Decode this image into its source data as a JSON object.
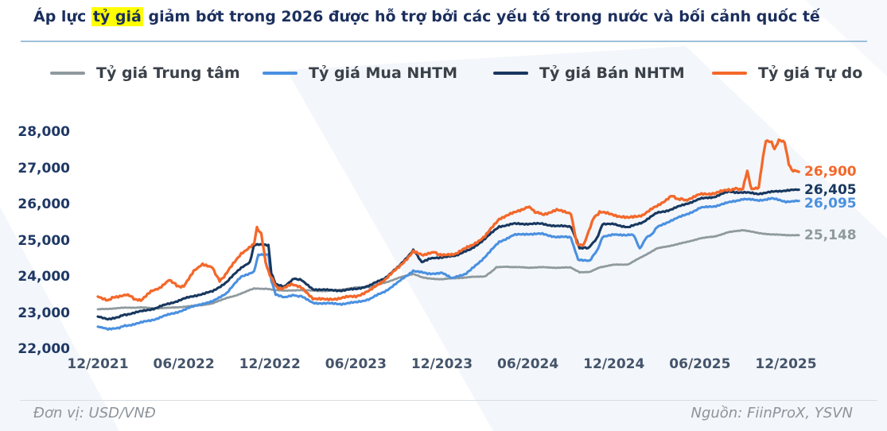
{
  "title": {
    "prefix": "Áp lực ",
    "highlight": "tỷ giá",
    "suffix": " giảm bớt trong 2026 được hỗ trợ bởi các yếu tố trong nước và bối cảnh quốc tế"
  },
  "footer": {
    "unit": "Đơn vị: USD/VNĐ",
    "source": "Nguồn: FiinProX, YSVN"
  },
  "colors": {
    "title": "#1b2f5e",
    "highlight": "#ffff00",
    "underline": "#9dc0da",
    "axis": "#1f3864",
    "xaxis": "#44546a",
    "separator": "#d9dde2",
    "footer_text": "#8d949b"
  },
  "chart_data": {
    "type": "line",
    "unit": "USD/VND",
    "ylim": [
      22000,
      28000
    ],
    "grid": false,
    "legend_position": "top",
    "y_ticks": [
      "28,000",
      "27,000",
      "26,000",
      "25,000",
      "24,000",
      "23,000",
      "22,000"
    ],
    "y_tick_values": [
      28000,
      27000,
      26000,
      25000,
      24000,
      23000,
      22000
    ],
    "x_ticks": [
      "12/2021",
      "06/2022",
      "12/2022",
      "06/2023",
      "12/2023",
      "06/2024",
      "12/2024",
      "06/2025",
      "12/2025"
    ],
    "x_note": "series points are [months since 12/2021, rate VND per USD]",
    "series": [
      {
        "name": "Tỷ giá Trung tâm",
        "color": "#8f9a9e",
        "end_label": "25,148",
        "end_value": 25148,
        "points": [
          [
            0,
            23100
          ],
          [
            1,
            23120
          ],
          [
            2,
            23145
          ],
          [
            3,
            23150
          ],
          [
            4,
            23125
          ],
          [
            5,
            23140
          ],
          [
            6,
            23170
          ],
          [
            7,
            23205
          ],
          [
            8,
            23260
          ],
          [
            9,
            23420
          ],
          [
            9.6,
            23480
          ],
          [
            10.4,
            23600
          ],
          [
            10.9,
            23680
          ],
          [
            11.5,
            23670
          ],
          [
            12,
            23655
          ],
          [
            13,
            23610
          ],
          [
            14,
            23632
          ],
          [
            15,
            23615
          ],
          [
            16,
            23605
          ],
          [
            17,
            23645
          ],
          [
            18,
            23700
          ],
          [
            19,
            23722
          ],
          [
            20,
            23830
          ],
          [
            21,
            23970
          ],
          [
            22,
            24080
          ],
          [
            22.5,
            24000
          ],
          [
            23,
            23952
          ],
          [
            24,
            23932
          ],
          [
            25,
            23962
          ],
          [
            26,
            23990
          ],
          [
            27,
            24012
          ],
          [
            27.4,
            24120
          ],
          [
            27.8,
            24262
          ],
          [
            28.5,
            24272
          ],
          [
            29,
            24268
          ],
          [
            30,
            24252
          ],
          [
            31,
            24262
          ],
          [
            32,
            24250
          ],
          [
            33,
            24255
          ],
          [
            33.6,
            24120
          ],
          [
            34.3,
            24132
          ],
          [
            35,
            24262
          ],
          [
            36,
            24330
          ],
          [
            37,
            24342
          ],
          [
            38,
            24560
          ],
          [
            39,
            24780
          ],
          [
            40,
            24862
          ],
          [
            41,
            24950
          ],
          [
            42,
            25060
          ],
          [
            43,
            25112
          ],
          [
            44,
            25230
          ],
          [
            45,
            25292
          ],
          [
            46,
            25212
          ],
          [
            47,
            25168
          ],
          [
            48,
            25152
          ],
          [
            48.9,
            25148
          ]
        ]
      },
      {
        "name": "Tỷ giá Mua NHTM",
        "color": "#4a90e0",
        "end_label": "26,095",
        "end_value": 26095,
        "points": [
          [
            0,
            22620
          ],
          [
            0.7,
            22550
          ],
          [
            1.5,
            22600
          ],
          [
            2,
            22650
          ],
          [
            3,
            22730
          ],
          [
            4,
            22830
          ],
          [
            5,
            22960
          ],
          [
            6,
            23080
          ],
          [
            7,
            23230
          ],
          [
            8,
            23310
          ],
          [
            9,
            23560
          ],
          [
            10,
            24000
          ],
          [
            10.9,
            24150
          ],
          [
            11.2,
            24600
          ],
          [
            11.9,
            24620
          ],
          [
            12.1,
            23900
          ],
          [
            12.4,
            23500
          ],
          [
            13,
            23420
          ],
          [
            13.7,
            23490
          ],
          [
            14.2,
            23450
          ],
          [
            15,
            23280
          ],
          [
            16,
            23260
          ],
          [
            17,
            23250
          ],
          [
            18,
            23290
          ],
          [
            19,
            23390
          ],
          [
            20,
            23590
          ],
          [
            21,
            23860
          ],
          [
            22,
            24170
          ],
          [
            23,
            24080
          ],
          [
            24,
            24110
          ],
          [
            24.7,
            23950
          ],
          [
            25.5,
            24050
          ],
          [
            26,
            24180
          ],
          [
            27,
            24550
          ],
          [
            28,
            24960
          ],
          [
            29,
            25150
          ],
          [
            30,
            25185
          ],
          [
            31,
            25180
          ],
          [
            32,
            25100
          ],
          [
            33,
            25090
          ],
          [
            33.5,
            24460
          ],
          [
            34.3,
            24450
          ],
          [
            34.8,
            24700
          ],
          [
            35.2,
            25090
          ],
          [
            36,
            25160
          ],
          [
            36.8,
            25160
          ],
          [
            37.4,
            25150
          ],
          [
            37.8,
            24760
          ],
          [
            38.2,
            25060
          ],
          [
            38.6,
            25160
          ],
          [
            39,
            25360
          ],
          [
            40,
            25560
          ],
          [
            41,
            25710
          ],
          [
            42,
            25900
          ],
          [
            43,
            25950
          ],
          [
            44,
            26050
          ],
          [
            45,
            26150
          ],
          [
            46,
            26110
          ],
          [
            47,
            26160
          ],
          [
            48,
            26080
          ],
          [
            48.9,
            26095
          ]
        ]
      },
      {
        "name": "Tỷ giá Bán NHTM",
        "color": "#17375e",
        "end_label": "26,405",
        "end_value": 26405,
        "points": [
          [
            0,
            22900
          ],
          [
            0.7,
            22830
          ],
          [
            1.5,
            22900
          ],
          [
            2,
            22960
          ],
          [
            3,
            23040
          ],
          [
            4,
            23130
          ],
          [
            5,
            23260
          ],
          [
            6,
            23390
          ],
          [
            7,
            23500
          ],
          [
            8,
            23590
          ],
          [
            9,
            23860
          ],
          [
            10,
            24250
          ],
          [
            10.6,
            24400
          ],
          [
            10.9,
            24880
          ],
          [
            11.9,
            24880
          ],
          [
            12.1,
            24100
          ],
          [
            12.4,
            23790
          ],
          [
            13,
            23720
          ],
          [
            13.7,
            23960
          ],
          [
            14.2,
            23900
          ],
          [
            15,
            23660
          ],
          [
            16,
            23630
          ],
          [
            17,
            23620
          ],
          [
            18,
            23660
          ],
          [
            19,
            23760
          ],
          [
            20,
            23960
          ],
          [
            21,
            24280
          ],
          [
            22,
            24740
          ],
          [
            22.6,
            24410
          ],
          [
            23.2,
            24520
          ],
          [
            24,
            24520
          ],
          [
            25,
            24600
          ],
          [
            26,
            24750
          ],
          [
            27,
            25050
          ],
          [
            28,
            25390
          ],
          [
            29,
            25460
          ],
          [
            30,
            25465
          ],
          [
            31,
            25460
          ],
          [
            32,
            25400
          ],
          [
            33,
            25390
          ],
          [
            33.6,
            24800
          ],
          [
            34.2,
            24790
          ],
          [
            34.8,
            25060
          ],
          [
            35.2,
            25440
          ],
          [
            36,
            25460
          ],
          [
            37,
            25360
          ],
          [
            38,
            25510
          ],
          [
            39,
            25760
          ],
          [
            40,
            25860
          ],
          [
            41,
            26010
          ],
          [
            42,
            26150
          ],
          [
            43,
            26210
          ],
          [
            44,
            26350
          ],
          [
            45,
            26330
          ],
          [
            46,
            26295
          ],
          [
            47,
            26340
          ],
          [
            48,
            26390
          ],
          [
            48.9,
            26405
          ]
        ]
      },
      {
        "name": "Tỷ giá Tự do",
        "color": "#f3682a",
        "end_label": "26,900",
        "end_value": 26900,
        "points": [
          [
            0,
            23450
          ],
          [
            0.7,
            23360
          ],
          [
            1.3,
            23450
          ],
          [
            2,
            23520
          ],
          [
            2.5,
            23400
          ],
          [
            3,
            23330
          ],
          [
            3.7,
            23600
          ],
          [
            4.3,
            23680
          ],
          [
            5,
            23930
          ],
          [
            5.5,
            23750
          ],
          [
            6,
            23720
          ],
          [
            6.7,
            24150
          ],
          [
            7.3,
            24330
          ],
          [
            8,
            24250
          ],
          [
            8.5,
            23870
          ],
          [
            9,
            24110
          ],
          [
            10,
            24650
          ],
          [
            10.9,
            24900
          ],
          [
            11.1,
            25350
          ],
          [
            11.4,
            25200
          ],
          [
            11.7,
            24400
          ],
          [
            12.0,
            24050
          ],
          [
            12.4,
            23750
          ],
          [
            12.8,
            23640
          ],
          [
            13.5,
            23780
          ],
          [
            14.2,
            23700
          ],
          [
            15,
            23410
          ],
          [
            16,
            23360
          ],
          [
            17,
            23420
          ],
          [
            18,
            23460
          ],
          [
            19,
            23620
          ],
          [
            20,
            23920
          ],
          [
            21,
            24260
          ],
          [
            22,
            24700
          ],
          [
            22.7,
            24580
          ],
          [
            23.5,
            24680
          ],
          [
            24,
            24580
          ],
          [
            25,
            24650
          ],
          [
            26,
            24850
          ],
          [
            27,
            25110
          ],
          [
            28,
            25610
          ],
          [
            29,
            25760
          ],
          [
            30,
            25940
          ],
          [
            30.5,
            25800
          ],
          [
            31,
            25720
          ],
          [
            32,
            25840
          ],
          [
            33,
            25760
          ],
          [
            33.4,
            24910
          ],
          [
            33.9,
            24870
          ],
          [
            34.6,
            25630
          ],
          [
            35,
            25790
          ],
          [
            36,
            25710
          ],
          [
            37,
            25620
          ],
          [
            38,
            25710
          ],
          [
            39,
            25950
          ],
          [
            40,
            26230
          ],
          [
            40.5,
            26150
          ],
          [
            41,
            26120
          ],
          [
            42,
            26270
          ],
          [
            43,
            26310
          ],
          [
            44,
            26400
          ],
          [
            44.6,
            26430
          ],
          [
            45.0,
            26420
          ],
          [
            45.3,
            26930
          ],
          [
            45.6,
            26400
          ],
          [
            46.1,
            26480
          ],
          [
            46.4,
            27300
          ],
          [
            46.6,
            27780
          ],
          [
            47.0,
            27700
          ],
          [
            47.2,
            27540
          ],
          [
            47.5,
            27760
          ],
          [
            47.9,
            27740
          ],
          [
            48.2,
            27100
          ],
          [
            48.4,
            26960
          ],
          [
            48.9,
            26900
          ]
        ]
      }
    ]
  }
}
